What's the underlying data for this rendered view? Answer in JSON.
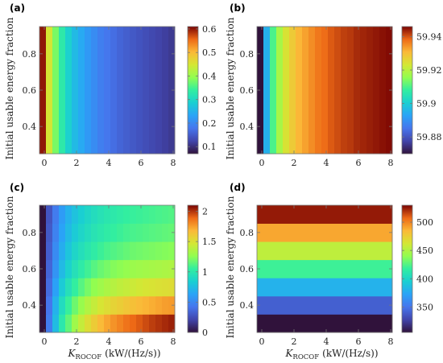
{
  "figure": {
    "ylabel": "Initial usable energy fraction",
    "xlabel_main": "K",
    "xlabel_sub": "ROCOF",
    "xlabel_units": "(kW/(Hz/s))"
  },
  "colors": {
    "colormap": "turbo",
    "axis": "#777777"
  },
  "chart_data": [
    {
      "label": "(a)",
      "type": "heatmap",
      "vary": "x",
      "x_range": [
        0,
        8.2
      ],
      "y_range": [
        0.25,
        0.95
      ],
      "x_ticks": [
        0,
        2,
        4,
        6,
        8
      ],
      "y_ticks": [
        0.4,
        0.6,
        0.8
      ],
      "x_edges": [
        -0.3,
        0.1,
        0.5,
        0.9,
        1.3,
        1.7,
        2.1,
        2.5,
        2.9,
        3.3,
        3.7,
        4.1,
        4.5,
        4.9,
        5.3,
        5.7,
        6.1,
        6.5,
        6.9,
        7.3,
        7.7,
        8.1
      ],
      "y_edges": [
        0.25,
        0.95
      ],
      "values": [
        0.6,
        0.45,
        0.38,
        0.33,
        0.29,
        0.26,
        0.24,
        0.22,
        0.205,
        0.19,
        0.18,
        0.17,
        0.16,
        0.153,
        0.146,
        0.14,
        0.134,
        0.128,
        0.123,
        0.118,
        0.112
      ],
      "cbar_ticks": [
        0.1,
        0.2,
        0.3,
        0.4,
        0.5,
        0.6
      ],
      "cbar_tick_labels": [
        "0.1",
        "0.2",
        "0.3",
        "0.4",
        "0.5",
        "0.6"
      ],
      "clim": [
        0.07,
        0.61
      ]
    },
    {
      "label": "(b)",
      "type": "heatmap",
      "vary": "x",
      "x_range": [
        0,
        8.2
      ],
      "y_range": [
        0.25,
        0.95
      ],
      "x_ticks": [
        0,
        2,
        4,
        6,
        8
      ],
      "y_ticks": [
        0.4,
        0.6,
        0.8
      ],
      "x_edges": [
        -0.3,
        0.1,
        0.5,
        0.9,
        1.3,
        1.7,
        2.1,
        2.5,
        2.9,
        3.3,
        3.7,
        4.1,
        4.5,
        4.9,
        5.3,
        5.7,
        6.1,
        6.5,
        6.9,
        7.3,
        7.7,
        8.1
      ],
      "y_edges": [
        0.25,
        0.95
      ],
      "values": [
        59.87,
        59.895,
        59.91,
        59.918,
        59.924,
        59.928,
        59.931,
        59.933,
        59.935,
        59.937,
        59.938,
        59.9395,
        59.9405,
        59.9415,
        59.942,
        59.943,
        59.9435,
        59.944,
        59.9445,
        59.945,
        59.9455
      ],
      "cbar_ticks": [
        59.88,
        59.9,
        59.92,
        59.94
      ],
      "cbar_tick_labels": [
        "59.88",
        "59.9",
        "59.92",
        "59.94"
      ],
      "clim": [
        59.87,
        59.946
      ]
    },
    {
      "label": "(c)",
      "type": "heatmap",
      "vary": "xy",
      "x_range": [
        0,
        8.2
      ],
      "y_range": [
        0.25,
        0.95
      ],
      "x_ticks": [
        0,
        2,
        4,
        6,
        8
      ],
      "y_ticks": [
        0.4,
        0.6,
        0.8
      ],
      "x_edges": [
        -0.3,
        0.1,
        0.5,
        0.9,
        1.3,
        1.7,
        2.1,
        2.5,
        2.9,
        3.3,
        3.7,
        4.1,
        4.5,
        4.9,
        5.3,
        5.7,
        6.1,
        6.5,
        6.9,
        7.3,
        7.7,
        8.1
      ],
      "y_edges": [
        0.25,
        0.35,
        0.45,
        0.55,
        0.65,
        0.75,
        0.85,
        0.95
      ],
      "grid": [
        [
          0.0,
          0.45,
          0.75,
          1.0,
          1.15,
          1.3,
          1.42,
          1.52,
          1.6,
          1.67,
          1.73,
          1.78,
          1.82,
          1.86,
          1.89,
          1.92,
          1.95,
          1.98,
          2.0,
          2.02,
          2.04
        ],
        [
          0.0,
          0.42,
          0.7,
          0.92,
          1.06,
          1.18,
          1.28,
          1.36,
          1.42,
          1.48,
          1.52,
          1.56,
          1.59,
          1.62,
          1.65,
          1.67,
          1.69,
          1.71,
          1.73,
          1.75,
          1.76
        ],
        [
          0.0,
          0.38,
          0.62,
          0.82,
          0.95,
          1.05,
          1.13,
          1.2,
          1.26,
          1.3,
          1.34,
          1.37,
          1.4,
          1.42,
          1.44,
          1.46,
          1.48,
          1.49,
          1.5,
          1.51,
          1.52
        ],
        [
          0.0,
          0.35,
          0.56,
          0.74,
          0.86,
          0.95,
          1.02,
          1.08,
          1.13,
          1.17,
          1.2,
          1.23,
          1.25,
          1.27,
          1.29,
          1.3,
          1.31,
          1.32,
          1.33,
          1.34,
          1.35
        ],
        [
          0.0,
          0.32,
          0.52,
          0.68,
          0.79,
          0.88,
          0.94,
          0.99,
          1.03,
          1.07,
          1.1,
          1.12,
          1.14,
          1.16,
          1.18,
          1.19,
          1.2,
          1.21,
          1.22,
          1.23,
          1.24
        ],
        [
          0.0,
          0.3,
          0.48,
          0.63,
          0.74,
          0.82,
          0.88,
          0.93,
          0.97,
          1.0,
          1.03,
          1.05,
          1.07,
          1.09,
          1.1,
          1.11,
          1.12,
          1.13,
          1.14,
          1.15,
          1.16
        ],
        [
          0.0,
          0.28,
          0.45,
          0.6,
          0.7,
          0.78,
          0.84,
          0.89,
          0.93,
          0.96,
          0.99,
          1.01,
          1.03,
          1.05,
          1.06,
          1.07,
          1.08,
          1.09,
          1.1,
          1.11,
          1.12
        ]
      ],
      "cbar_ticks": [
        0,
        0.5,
        1,
        1.5,
        2
      ],
      "cbar_tick_labels": [
        "0",
        "0.5",
        "1",
        "1.5",
        "2"
      ],
      "clim": [
        0,
        2.1
      ]
    },
    {
      "label": "(d)",
      "type": "heatmap",
      "vary": "y",
      "x_range": [
        0,
        8.2
      ],
      "y_range": [
        0.25,
        0.95
      ],
      "x_ticks": [
        0,
        2,
        4,
        6,
        8
      ],
      "y_ticks": [
        0.4,
        0.6,
        0.8
      ],
      "x_edges": [
        -0.3,
        8.1
      ],
      "y_edges": [
        0.25,
        0.35,
        0.45,
        0.55,
        0.65,
        0.75,
        0.85,
        0.95
      ],
      "values": [
        305,
        340,
        380,
        420,
        455,
        490,
        525
      ],
      "cbar_ticks": [
        350,
        400,
        450,
        500
      ],
      "cbar_tick_labels": [
        "350",
        "400",
        "450",
        "500"
      ],
      "clim": [
        305,
        530
      ]
    }
  ]
}
